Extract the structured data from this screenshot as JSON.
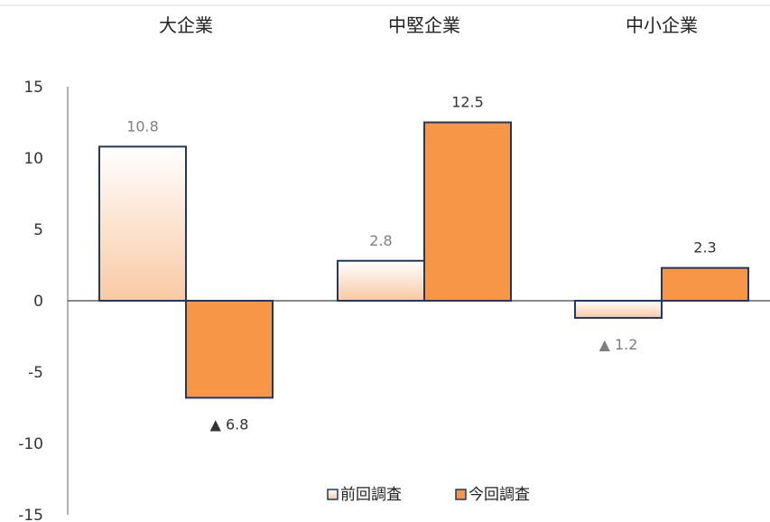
{
  "chart_data": {
    "type": "bar",
    "categories": [
      "大企業",
      "中堅企業",
      "中小企業"
    ],
    "series": [
      {
        "name": "前回調査",
        "values": [
          10.8,
          2.8,
          -1.2
        ],
        "color": "#fbd3b4",
        "labels": [
          "10.8",
          "2.8",
          "▲ 1.2"
        ]
      },
      {
        "name": "今回調査",
        "values": [
          -6.8,
          12.5,
          2.3
        ],
        "color": "#f79646",
        "labels": [
          "▲ 6.8",
          "12.5",
          "2.3"
        ]
      }
    ],
    "ylim": [
      -15,
      15
    ],
    "yticks": [
      "15",
      "10",
      "5",
      "0",
      "-5",
      "-10",
      "-15"
    ],
    "legend_position": "bottom-center",
    "bar_outline_color": "#1f3864",
    "grid": false
  }
}
